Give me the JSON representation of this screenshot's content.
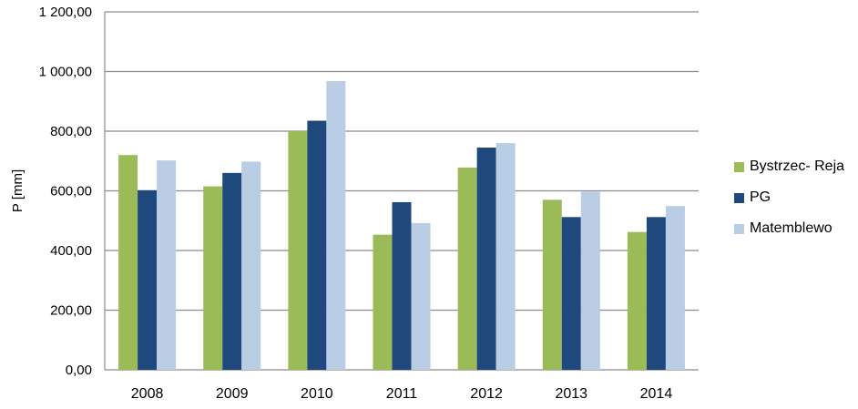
{
  "chart_data": {
    "type": "bar",
    "title": "",
    "xlabel": "",
    "ylabel": "P [mm]",
    "ylim": [
      0,
      1200
    ],
    "yticks": [
      0,
      200,
      400,
      600,
      800,
      1000,
      1200
    ],
    "ytick_labels": [
      "0,00",
      "200,00",
      "400,00",
      "600,00",
      "800,00",
      "1 000,00",
      "1 200,00"
    ],
    "grid": "horizontal",
    "legend_position": "right",
    "categories": [
      "2008",
      "2009",
      "2010",
      "2011",
      "2012",
      "2013",
      "2014"
    ],
    "series": [
      {
        "name": "Bystrzec- Reja",
        "color": "#9bbb59",
        "values": [
          720,
          615,
          800,
          453,
          678,
          570,
          462
        ]
      },
      {
        "name": "PG",
        "color": "#1f497d",
        "values": [
          602,
          660,
          835,
          562,
          745,
          512,
          512
        ]
      },
      {
        "name": "Matemblewo",
        "color": "#b9cde5",
        "values": [
          702,
          698,
          968,
          492,
          760,
          597,
          549
        ]
      }
    ]
  }
}
